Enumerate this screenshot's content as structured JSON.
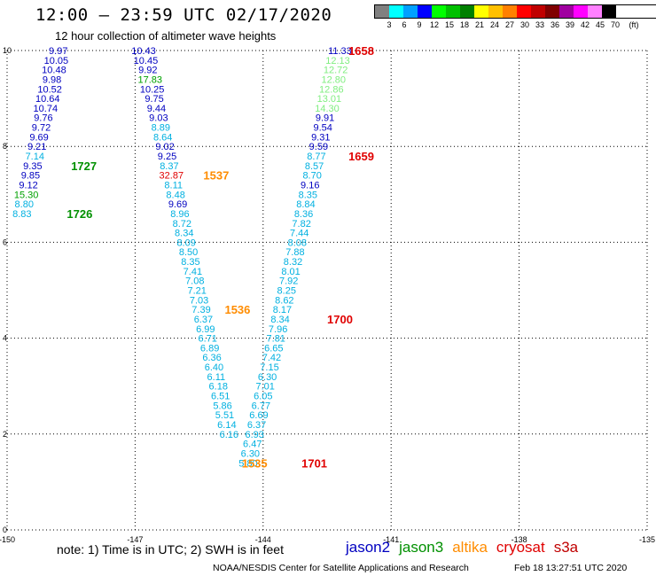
{
  "header": {
    "title": "12:00 – 23:59 UTC 02/17/2020",
    "subtitle": "12 hour collection of altimeter wave heights"
  },
  "scale": {
    "labels": [
      "3",
      "6",
      "9",
      "12",
      "15",
      "18",
      "21",
      "24",
      "27",
      "30",
      "33",
      "36",
      "39",
      "42",
      "45",
      "70"
    ],
    "unit": "(ft)",
    "colors": [
      "#808080",
      "#00ffff",
      "#00a0ff",
      "#0000ff",
      "#00ff00",
      "#00c000",
      "#008000",
      "#ffff00",
      "#ffc000",
      "#ff8000",
      "#ff0000",
      "#c00000",
      "#800000",
      "#a000a0",
      "#ff00ff",
      "#ff80ff",
      "#000000"
    ]
  },
  "colors": {
    "jason2": "#0000c0",
    "jason3": "#009000",
    "altika": "#ff8c00",
    "cryosat": "#e00000",
    "s3a": "#c00000",
    "c_lt": "#00b0e0",
    "c_lg": "#80ee80",
    "c_dg": "#00a000"
  },
  "notes": {
    "footnote": "note:  1) Time is in UTC;  2) SWH is in feet",
    "credit": "NOAA/NESDIS Center for Satellite Applications and Research",
    "generated": "Feb 18 13:27:51 UTC 2020"
  },
  "satellites": [
    "jason2",
    "jason3",
    "altika",
    "cryosat",
    "s3a"
  ],
  "chart_data": {
    "type": "scatter",
    "xlim": [
      -150,
      -135
    ],
    "ylim": [
      0,
      10
    ],
    "xticks": [
      -150,
      -147,
      -144,
      -141,
      -138,
      -135
    ],
    "yticks": [
      0,
      2,
      4,
      6,
      8,
      10
    ],
    "grid": true,
    "points": [
      {
        "x": -148.8,
        "y": 10.0,
        "v": "9.97",
        "c": "jason2"
      },
      {
        "x": -148.85,
        "y": 9.8,
        "v": "10.05",
        "c": "jason2"
      },
      {
        "x": -148.9,
        "y": 9.6,
        "v": "10.48",
        "c": "jason2"
      },
      {
        "x": -148.95,
        "y": 9.4,
        "v": "9.98",
        "c": "jason2"
      },
      {
        "x": -149.0,
        "y": 9.2,
        "v": "10.52",
        "c": "jason2"
      },
      {
        "x": -149.05,
        "y": 9.0,
        "v": "10.64",
        "c": "jason2"
      },
      {
        "x": -149.1,
        "y": 8.8,
        "v": "10.74",
        "c": "jason2"
      },
      {
        "x": -149.15,
        "y": 8.6,
        "v": "9.76",
        "c": "jason2"
      },
      {
        "x": -149.2,
        "y": 8.4,
        "v": "9.72",
        "c": "jason2"
      },
      {
        "x": -149.25,
        "y": 8.2,
        "v": "9.69",
        "c": "jason2"
      },
      {
        "x": -149.3,
        "y": 8.0,
        "v": "9.21",
        "c": "jason2"
      },
      {
        "x": -149.35,
        "y": 7.8,
        "v": "7.14",
        "c": "c_lt"
      },
      {
        "x": -149.4,
        "y": 7.6,
        "v": "9.35",
        "c": "jason2"
      },
      {
        "x": -149.45,
        "y": 7.4,
        "v": "9.85",
        "c": "jason2"
      },
      {
        "x": -149.5,
        "y": 7.2,
        "v": "9.12",
        "c": "jason2"
      },
      {
        "x": -149.55,
        "y": 7.0,
        "v": "15.30",
        "c": "c_dg"
      },
      {
        "x": -149.6,
        "y": 6.8,
        "v": "8.80",
        "c": "c_lt"
      },
      {
        "x": -149.65,
        "y": 6.6,
        "v": "8.83",
        "c": "c_lt"
      },
      {
        "x": -146.8,
        "y": 10.0,
        "v": "10.43",
        "c": "jason2"
      },
      {
        "x": -146.75,
        "y": 9.8,
        "v": "10.45",
        "c": "jason2"
      },
      {
        "x": -146.7,
        "y": 9.6,
        "v": "9.92",
        "c": "jason2"
      },
      {
        "x": -146.65,
        "y": 9.4,
        "v": "17.83",
        "c": "c_dg"
      },
      {
        "x": -146.6,
        "y": 9.2,
        "v": "10.25",
        "c": "jason2"
      },
      {
        "x": -146.55,
        "y": 9.0,
        "v": "9.75",
        "c": "jason2"
      },
      {
        "x": -146.5,
        "y": 8.8,
        "v": "9.44",
        "c": "jason2"
      },
      {
        "x": -146.45,
        "y": 8.6,
        "v": "9.03",
        "c": "jason2"
      },
      {
        "x": -146.4,
        "y": 8.4,
        "v": "8.89",
        "c": "c_lt"
      },
      {
        "x": -146.35,
        "y": 8.2,
        "v": "8.64",
        "c": "c_lt"
      },
      {
        "x": -146.3,
        "y": 8.0,
        "v": "9.02",
        "c": "jason2"
      },
      {
        "x": -146.25,
        "y": 7.8,
        "v": "9.25",
        "c": "jason2"
      },
      {
        "x": -146.2,
        "y": 7.6,
        "v": "8.37",
        "c": "c_lt"
      },
      {
        "x": -146.15,
        "y": 7.4,
        "v": "32.87",
        "c": "cryosat"
      },
      {
        "x": -146.1,
        "y": 7.2,
        "v": "8.11",
        "c": "c_lt"
      },
      {
        "x": -146.05,
        "y": 7.0,
        "v": "8.48",
        "c": "c_lt"
      },
      {
        "x": -146.0,
        "y": 6.8,
        "v": "9.69",
        "c": "jason2"
      },
      {
        "x": -145.95,
        "y": 6.6,
        "v": "8.96",
        "c": "c_lt"
      },
      {
        "x": -145.9,
        "y": 6.4,
        "v": "8.72",
        "c": "c_lt"
      },
      {
        "x": -145.85,
        "y": 6.2,
        "v": "8.34",
        "c": "c_lt"
      },
      {
        "x": -145.8,
        "y": 6.0,
        "v": "8.09",
        "c": "c_lt"
      },
      {
        "x": -145.75,
        "y": 5.8,
        "v": "8.50",
        "c": "c_lt"
      },
      {
        "x": -145.7,
        "y": 5.6,
        "v": "8.35",
        "c": "c_lt"
      },
      {
        "x": -145.65,
        "y": 5.4,
        "v": "7.41",
        "c": "c_lt"
      },
      {
        "x": -145.6,
        "y": 5.2,
        "v": "7.08",
        "c": "c_lt"
      },
      {
        "x": -145.55,
        "y": 5.0,
        "v": "7.21",
        "c": "c_lt"
      },
      {
        "x": -145.5,
        "y": 4.8,
        "v": "7.03",
        "c": "c_lt"
      },
      {
        "x": -145.45,
        "y": 4.6,
        "v": "7.39",
        "c": "c_lt"
      },
      {
        "x": -145.4,
        "y": 4.4,
        "v": "6.37",
        "c": "c_lt"
      },
      {
        "x": -145.35,
        "y": 4.2,
        "v": "6.99",
        "c": "c_lt"
      },
      {
        "x": -145.3,
        "y": 4.0,
        "v": "6.71",
        "c": "c_lt"
      },
      {
        "x": -145.25,
        "y": 3.8,
        "v": "6.89",
        "c": "c_lt"
      },
      {
        "x": -145.2,
        "y": 3.6,
        "v": "6.36",
        "c": "c_lt"
      },
      {
        "x": -145.15,
        "y": 3.4,
        "v": "6.40",
        "c": "c_lt"
      },
      {
        "x": -145.1,
        "y": 3.2,
        "v": "6.11",
        "c": "c_lt"
      },
      {
        "x": -145.05,
        "y": 3.0,
        "v": "6.18",
        "c": "c_lt"
      },
      {
        "x": -145.0,
        "y": 2.8,
        "v": "6.51",
        "c": "c_lt"
      },
      {
        "x": -144.95,
        "y": 2.6,
        "v": "5.86",
        "c": "c_lt"
      },
      {
        "x": -144.9,
        "y": 2.4,
        "v": "5.51",
        "c": "c_lt"
      },
      {
        "x": -144.85,
        "y": 2.2,
        "v": "6.14",
        "c": "c_lt"
      },
      {
        "x": -144.8,
        "y": 2.0,
        "v": "6.16",
        "c": "c_lt"
      },
      {
        "x": -142.2,
        "y": 10.0,
        "v": "11.33",
        "c": "jason2"
      },
      {
        "x": -142.25,
        "y": 9.8,
        "v": "12.13",
        "c": "c_lg"
      },
      {
        "x": -142.3,
        "y": 9.6,
        "v": "12.72",
        "c": "c_lg"
      },
      {
        "x": -142.35,
        "y": 9.4,
        "v": "12.80",
        "c": "c_lg"
      },
      {
        "x": -142.4,
        "y": 9.2,
        "v": "12.86",
        "c": "c_lg"
      },
      {
        "x": -142.45,
        "y": 9.0,
        "v": "13.01",
        "c": "c_lg"
      },
      {
        "x": -142.5,
        "y": 8.8,
        "v": "14.30",
        "c": "c_lg"
      },
      {
        "x": -142.55,
        "y": 8.6,
        "v": "9.91",
        "c": "jason2"
      },
      {
        "x": -142.6,
        "y": 8.4,
        "v": "9.54",
        "c": "jason2"
      },
      {
        "x": -142.65,
        "y": 8.2,
        "v": "9.31",
        "c": "jason2"
      },
      {
        "x": -142.7,
        "y": 8.0,
        "v": "9.59",
        "c": "jason2"
      },
      {
        "x": -142.75,
        "y": 7.8,
        "v": "8.77",
        "c": "c_lt"
      },
      {
        "x": -142.8,
        "y": 7.6,
        "v": "8.57",
        "c": "c_lt"
      },
      {
        "x": -142.85,
        "y": 7.4,
        "v": "8.70",
        "c": "c_lt"
      },
      {
        "x": -142.9,
        "y": 7.2,
        "v": "9.16",
        "c": "jason2"
      },
      {
        "x": -142.95,
        "y": 7.0,
        "v": "8.35",
        "c": "c_lt"
      },
      {
        "x": -143.0,
        "y": 6.8,
        "v": "8.84",
        "c": "c_lt"
      },
      {
        "x": -143.05,
        "y": 6.6,
        "v": "8.36",
        "c": "c_lt"
      },
      {
        "x": -143.1,
        "y": 6.4,
        "v": "7.82",
        "c": "c_lt"
      },
      {
        "x": -143.15,
        "y": 6.2,
        "v": "7.44",
        "c": "c_lt"
      },
      {
        "x": -143.2,
        "y": 6.0,
        "v": "8.08",
        "c": "c_lt"
      },
      {
        "x": -143.25,
        "y": 5.8,
        "v": "7.88",
        "c": "c_lt"
      },
      {
        "x": -143.3,
        "y": 5.6,
        "v": "8.32",
        "c": "c_lt"
      },
      {
        "x": -143.35,
        "y": 5.4,
        "v": "8.01",
        "c": "c_lt"
      },
      {
        "x": -143.4,
        "y": 5.2,
        "v": "7.92",
        "c": "c_lt"
      },
      {
        "x": -143.45,
        "y": 5.0,
        "v": "8.25",
        "c": "c_lt"
      },
      {
        "x": -143.5,
        "y": 4.8,
        "v": "8.62",
        "c": "c_lt"
      },
      {
        "x": -143.55,
        "y": 4.6,
        "v": "8.17",
        "c": "c_lt"
      },
      {
        "x": -143.6,
        "y": 4.4,
        "v": "8.34",
        "c": "c_lt"
      },
      {
        "x": -143.65,
        "y": 4.2,
        "v": "7.96",
        "c": "c_lt"
      },
      {
        "x": -143.7,
        "y": 4.0,
        "v": "7.81",
        "c": "c_lt"
      },
      {
        "x": -143.75,
        "y": 3.8,
        "v": "6.65",
        "c": "c_lt"
      },
      {
        "x": -143.8,
        "y": 3.6,
        "v": "7.42",
        "c": "c_lt"
      },
      {
        "x": -143.85,
        "y": 3.4,
        "v": "7.15",
        "c": "c_lt"
      },
      {
        "x": -143.9,
        "y": 3.2,
        "v": "6.30",
        "c": "c_lt"
      },
      {
        "x": -143.95,
        "y": 3.0,
        "v": "7.01",
        "c": "c_lt"
      },
      {
        "x": -144.0,
        "y": 2.8,
        "v": "6.05",
        "c": "c_lt"
      },
      {
        "x": -144.05,
        "y": 2.6,
        "v": "6.77",
        "c": "c_lt"
      },
      {
        "x": -144.1,
        "y": 2.4,
        "v": "6.69",
        "c": "c_lt"
      },
      {
        "x": -144.15,
        "y": 2.2,
        "v": "6.37",
        "c": "c_lt"
      },
      {
        "x": -144.2,
        "y": 2.0,
        "v": "6.93",
        "c": "c_lt"
      },
      {
        "x": -144.25,
        "y": 1.8,
        "v": "6.47",
        "c": "c_lt"
      },
      {
        "x": -144.3,
        "y": 1.6,
        "v": "6.30",
        "c": "c_lt"
      },
      {
        "x": -144.35,
        "y": 1.4,
        "v": "5.80",
        "c": "c_lt"
      }
    ],
    "time_labels": [
      {
        "x": -142.0,
        "y": 10.0,
        "v": "1658",
        "c": "cryosat"
      },
      {
        "x": -148.5,
        "y": 7.6,
        "v": "1727",
        "c": "jason3"
      },
      {
        "x": -148.6,
        "y": 6.6,
        "v": "1726",
        "c": "jason3"
      },
      {
        "x": -145.4,
        "y": 7.4,
        "v": "1537",
        "c": "altika"
      },
      {
        "x": -144.9,
        "y": 4.6,
        "v": "1536",
        "c": "altika"
      },
      {
        "x": -144.5,
        "y": 1.4,
        "v": "1535",
        "c": "altika"
      },
      {
        "x": -142.0,
        "y": 7.8,
        "v": "1659",
        "c": "cryosat"
      },
      {
        "x": -142.5,
        "y": 4.4,
        "v": "1700",
        "c": "cryosat"
      },
      {
        "x": -143.1,
        "y": 1.4,
        "v": "1701",
        "c": "cryosat"
      }
    ]
  }
}
